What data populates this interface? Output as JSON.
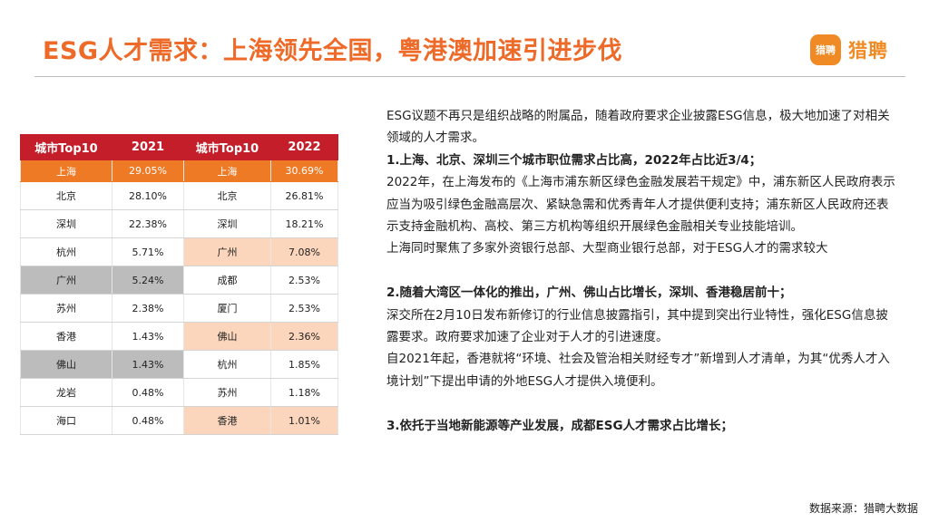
{
  "title": "ESG人才需求：上海领先全国，粤港澳加速引进步伐",
  "brand": {
    "mark": "猎聘",
    "name": "猎聘",
    "color": "#f08a24"
  },
  "colors": {
    "title": "#ee6a28",
    "header": "#c41e2a",
    "top_row": "#ef7a26",
    "gray": "#bcbcbc",
    "peach": "#fbd6bc"
  },
  "table": {
    "headers": [
      "城市Top10",
      "2021",
      "城市Top10",
      "2022"
    ],
    "rows": [
      [
        "上海",
        "29.05%",
        "上海",
        "30.69%"
      ],
      [
        "北京",
        "28.10%",
        "北京",
        "26.81%"
      ],
      [
        "深圳",
        "22.38%",
        "深圳",
        "18.21%"
      ],
      [
        "杭州",
        "5.71%",
        "广州",
        "7.08%"
      ],
      [
        "广州",
        "5.24%",
        "成都",
        "2.53%"
      ],
      [
        "苏州",
        "2.38%",
        "厦门",
        "2.53%"
      ],
      [
        "香港",
        "1.43%",
        "佛山",
        "2.36%"
      ],
      [
        "佛山",
        "1.43%",
        "杭州",
        "1.85%"
      ],
      [
        "龙岩",
        "0.48%",
        "苏州",
        "1.18%"
      ],
      [
        "海口",
        "0.48%",
        "香港",
        "1.01%"
      ]
    ]
  },
  "text": {
    "intro": "ESG议题不再只是组织战略的附属品，随着政府要求企业披露ESG信息，极大地加速了对相关领域的人才需求。",
    "point1_heading": "1.上海、北京、深圳三个城市职位需求占比高，2022年占比近3/4；",
    "point1_para1": "2022年，在上海发布的《上海市浦东新区绿色金融发展若干规定》中，浦东新区人民政府表示应当为吸引绿色金融高层次、紧缺急需和优秀青年人才提供便利支持；浦东新区人民政府还表示支持金融机构、高校、第三方机构等组织开展绿色金融相关专业技能培训。",
    "point1_para2": "上海同时聚焦了多家外资银行总部、大型商业银行总部，对于ESG人才的需求较大",
    "point2_heading": "2.随着大湾区一体化的推出，广州、佛山占比增长，深圳、香港稳居前十；",
    "point2_para1": "深交所在2月10日发布新修订的行业信息披露指引，其中提到突出行业特性，强化ESG信息披露要求。政府要求加速了企业对于人才的引进速度。",
    "point2_para2": "自2021年起，香港就将“环境、社会及管治相关财经专才”新增到人才清单，为其“优秀人才入境计划”下提出申请的外地ESG人才提供入境便利。",
    "point3_heading": "3.依托于当地新能源等产业发展，成都ESG人才需求占比增长；"
  },
  "source": "数据来源：猎聘大数据"
}
